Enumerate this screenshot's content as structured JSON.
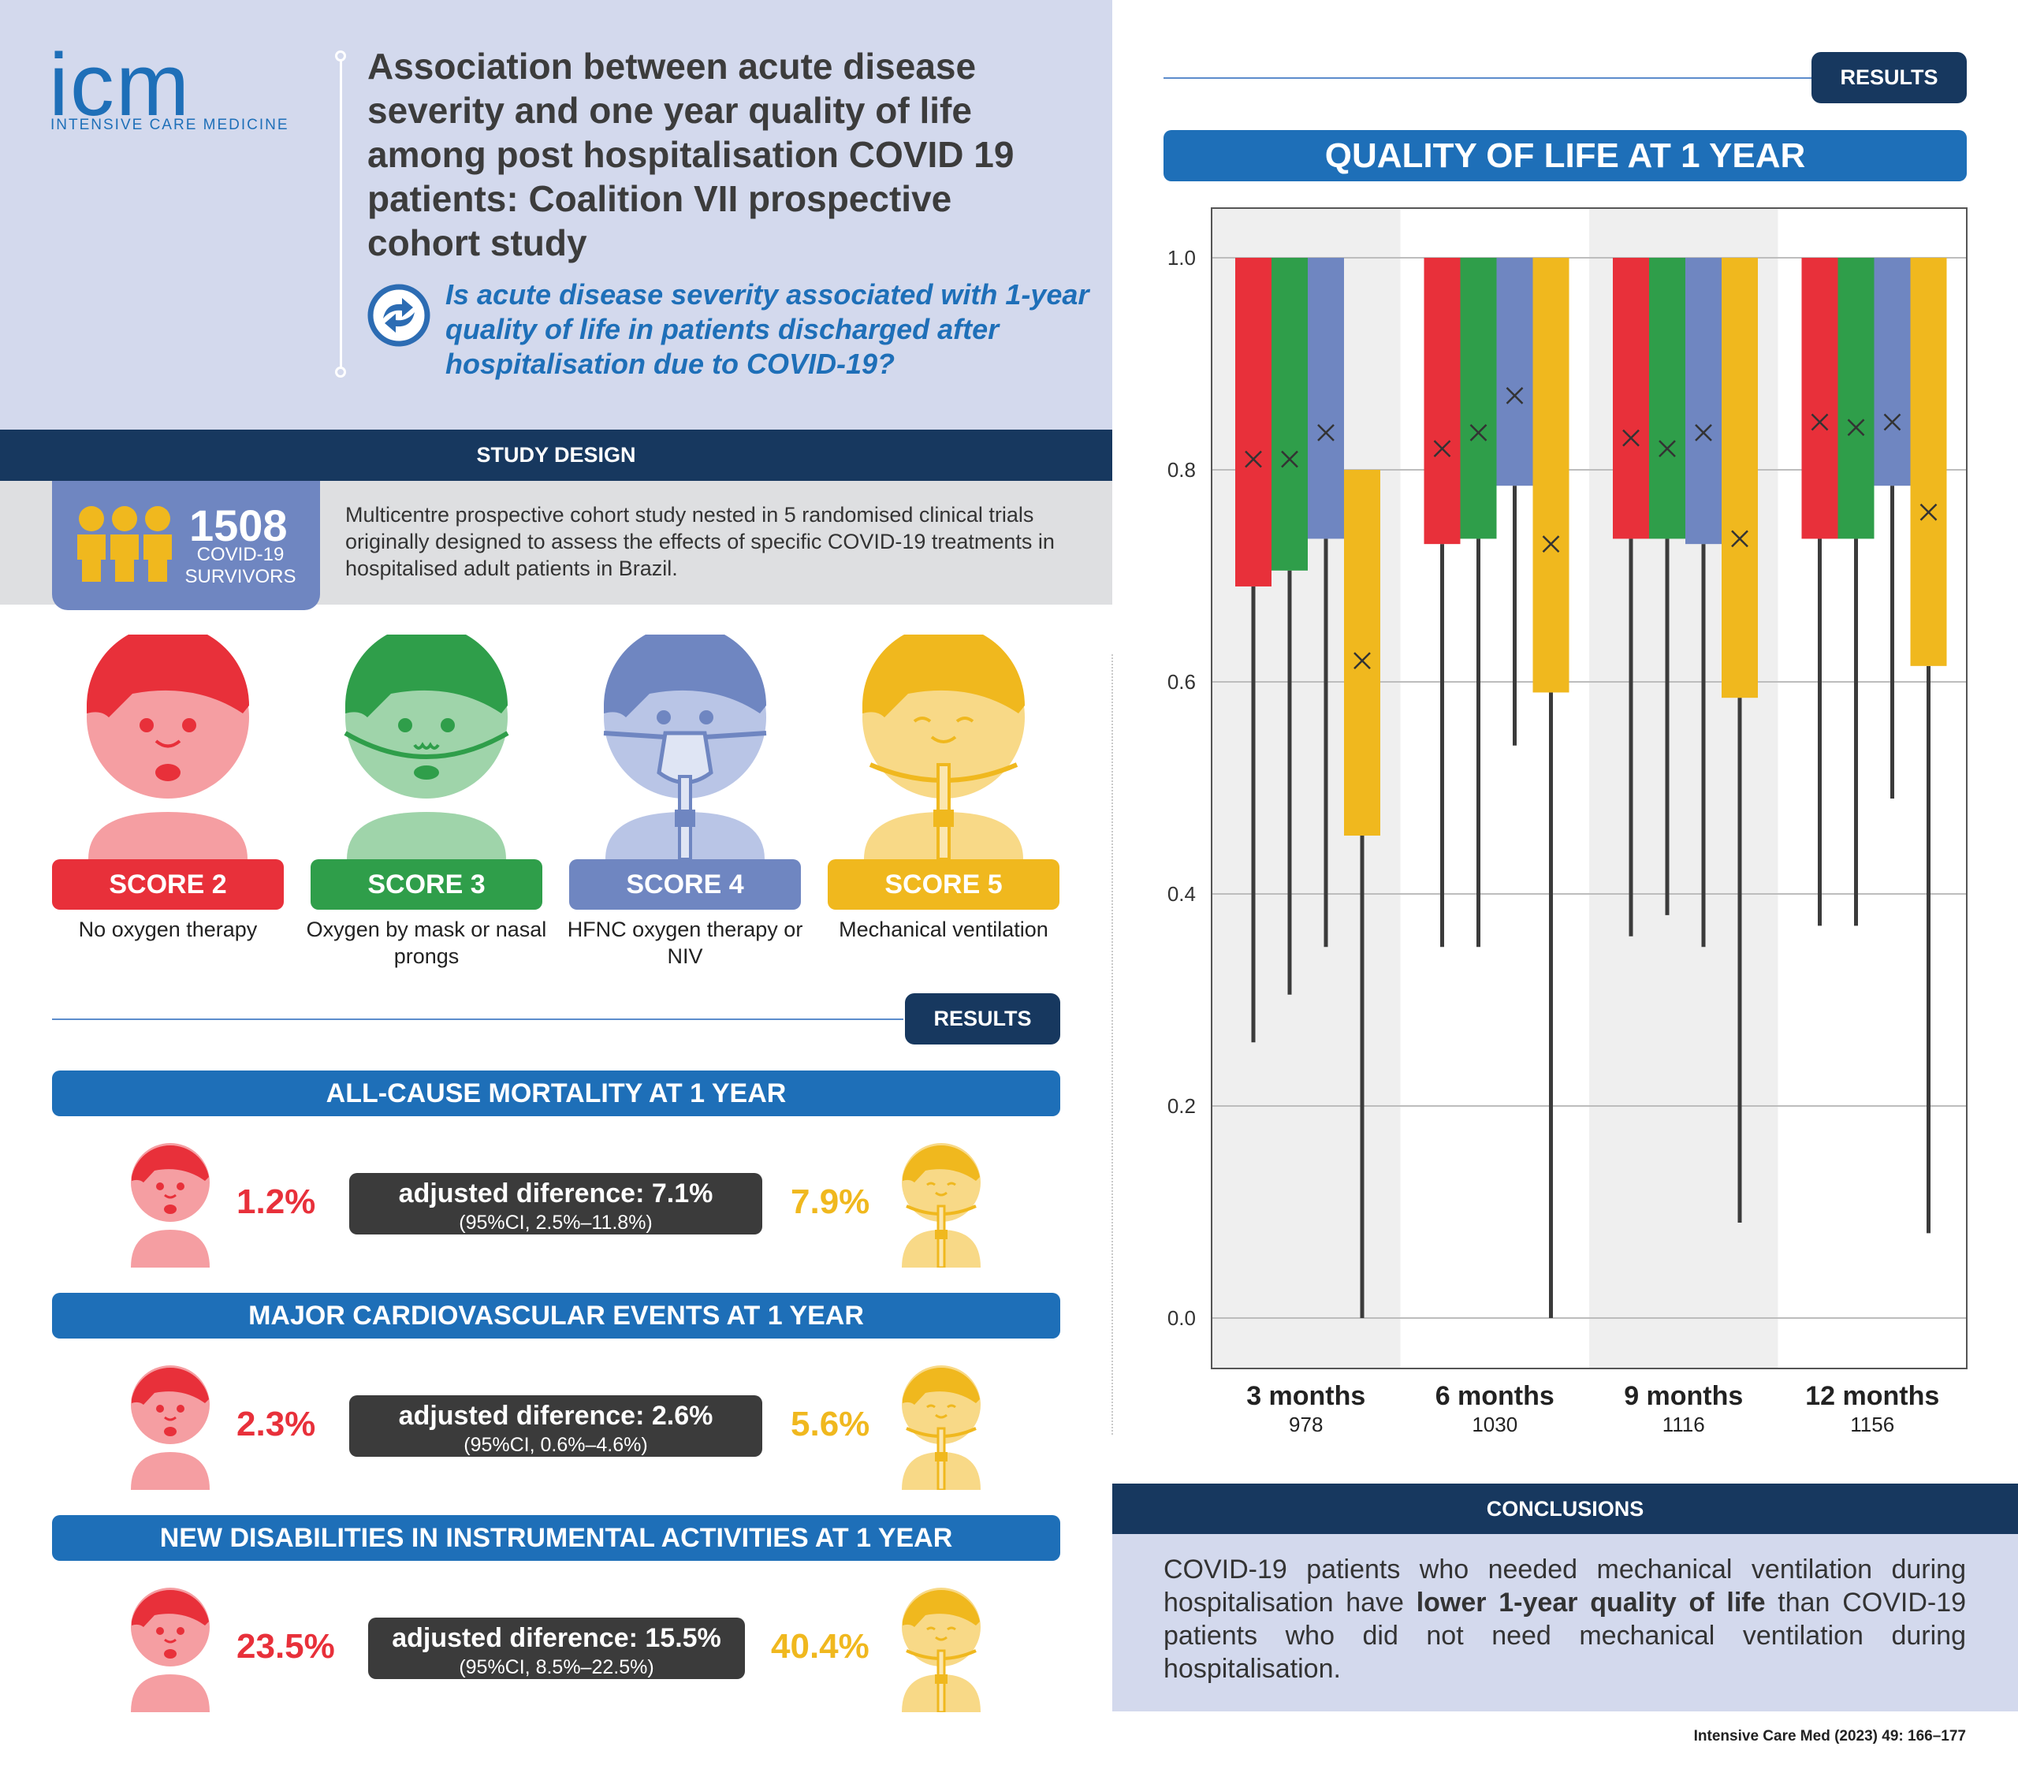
{
  "logo": {
    "word": "icm",
    "sub": "INTENSIVE CARE MEDICINE"
  },
  "title": "Association between acute disease severity and one year quality of life among post hospitalisation COVID 19 patients: Coalition VII prospective cohort study",
  "question": "Is acute disease severity associated with 1-year quality of life in patients discharged after hospitalisation due to COVID-19?",
  "study_design": {
    "header": "STUDY DESIGN",
    "count": "1508",
    "count_label1": "COVID-19",
    "count_label2": "SURVIVORS",
    "text": "Multicentre prospective cohort study nested in 5 randomised clinical trials originally designed to assess the effects of specific COVID-19 treatments in hospitalised adult patients in Brazil."
  },
  "scores": [
    {
      "label": "SCORE 2",
      "desc": "No oxygen therapy",
      "color": "#e8303a"
    },
    {
      "label": "SCORE 3",
      "desc": "Oxygen by mask or nasal prongs",
      "color": "#2f9e4a"
    },
    {
      "label": "SCORE 4",
      "desc": "HFNC oxygen therapy or NIV",
      "color": "#6f86c1"
    },
    {
      "label": "SCORE 5",
      "desc": "Mechanical ventilation",
      "color": "#f0b81e"
    }
  ],
  "results_label": "RESULTS",
  "outcomes": [
    {
      "title": "ALL-CAUSE MORTALITY AT 1 YEAR",
      "left": "1.2%",
      "adj": "adjusted diference: 7.1%",
      "ci": "(95%CI, 2.5%–11.8%)",
      "right": "7.9%"
    },
    {
      "title": "MAJOR CARDIOVASCULAR EVENTS AT 1 YEAR",
      "left": "2.3%",
      "adj": "adjusted diference: 2.6%",
      "ci": "(95%CI, 0.6%–4.6%)",
      "right": "5.6%"
    },
    {
      "title": "NEW DISABILITIES IN INSTRUMENTAL ACTIVITIES AT 1 YEAR",
      "left": "23.5%",
      "adj": "adjusted diference: 15.5%",
      "ci": "(95%CI, 8.5%–22.5%)",
      "right": "40.4%"
    }
  ],
  "qol_title": "QUALITY OF LIFE AT 1 YEAR",
  "chart_data": {
    "type": "box",
    "yticks": [
      "1.0",
      "0.8",
      "0.6",
      "0.4",
      "0.2",
      "0.0"
    ],
    "ylim": [
      0,
      1.0
    ],
    "groups": [
      {
        "label": "3 months",
        "n": "978"
      },
      {
        "label": "6 months",
        "n": "1030"
      },
      {
        "label": "9 months",
        "n": "1116"
      },
      {
        "label": "12 months",
        "n": "1156"
      }
    ],
    "colors": [
      "#e8303a",
      "#2f9e4a",
      "#6f86c1",
      "#f0b81e"
    ],
    "boxes": [
      [
        {
          "q1": 0.69,
          "q3": 1.0,
          "mean": 0.81,
          "lo": 0.26
        },
        {
          "q1": 0.705,
          "q3": 1.0,
          "mean": 0.81,
          "lo": 0.305
        },
        {
          "q1": 0.735,
          "q3": 1.0,
          "mean": 0.835,
          "lo": 0.35
        },
        {
          "q1": 0.455,
          "q3": 0.8,
          "mean": 0.62,
          "lo": 0.0
        }
      ],
      [
        {
          "q1": 0.73,
          "q3": 1.0,
          "mean": 0.82,
          "lo": 0.35
        },
        {
          "q1": 0.735,
          "q3": 1.0,
          "mean": 0.835,
          "lo": 0.35
        },
        {
          "q1": 0.785,
          "q3": 1.0,
          "mean": 0.87,
          "lo": 0.54
        },
        {
          "q1": 0.59,
          "q3": 1.0,
          "mean": 0.73,
          "lo": 0.0
        }
      ],
      [
        {
          "q1": 0.735,
          "q3": 1.0,
          "mean": 0.83,
          "lo": 0.36
        },
        {
          "q1": 0.735,
          "q3": 1.0,
          "mean": 0.82,
          "lo": 0.38
        },
        {
          "q1": 0.73,
          "q3": 1.0,
          "mean": 0.835,
          "lo": 0.35
        },
        {
          "q1": 0.585,
          "q3": 1.0,
          "mean": 0.735,
          "lo": 0.09
        }
      ],
      [
        {
          "q1": 0.735,
          "q3": 1.0,
          "mean": 0.845,
          "lo": 0.37
        },
        {
          "q1": 0.735,
          "q3": 1.0,
          "mean": 0.84,
          "lo": 0.37
        },
        {
          "q1": 0.785,
          "q3": 1.0,
          "mean": 0.845,
          "lo": 0.49
        },
        {
          "q1": 0.615,
          "q3": 1.0,
          "mean": 0.76,
          "lo": 0.08
        }
      ]
    ]
  },
  "conclusions": {
    "header": "CONCLUSIONS",
    "pre": "COVID-19 patients who needed mechanical ventilation during hospitalisation have ",
    "bold": "lower 1-year quality of life",
    "post": " than COVID-19 patients who did not need mechanical ventilation during hospitalisation."
  },
  "citation": "Intensive Care Med (2023) 49: 166–177"
}
